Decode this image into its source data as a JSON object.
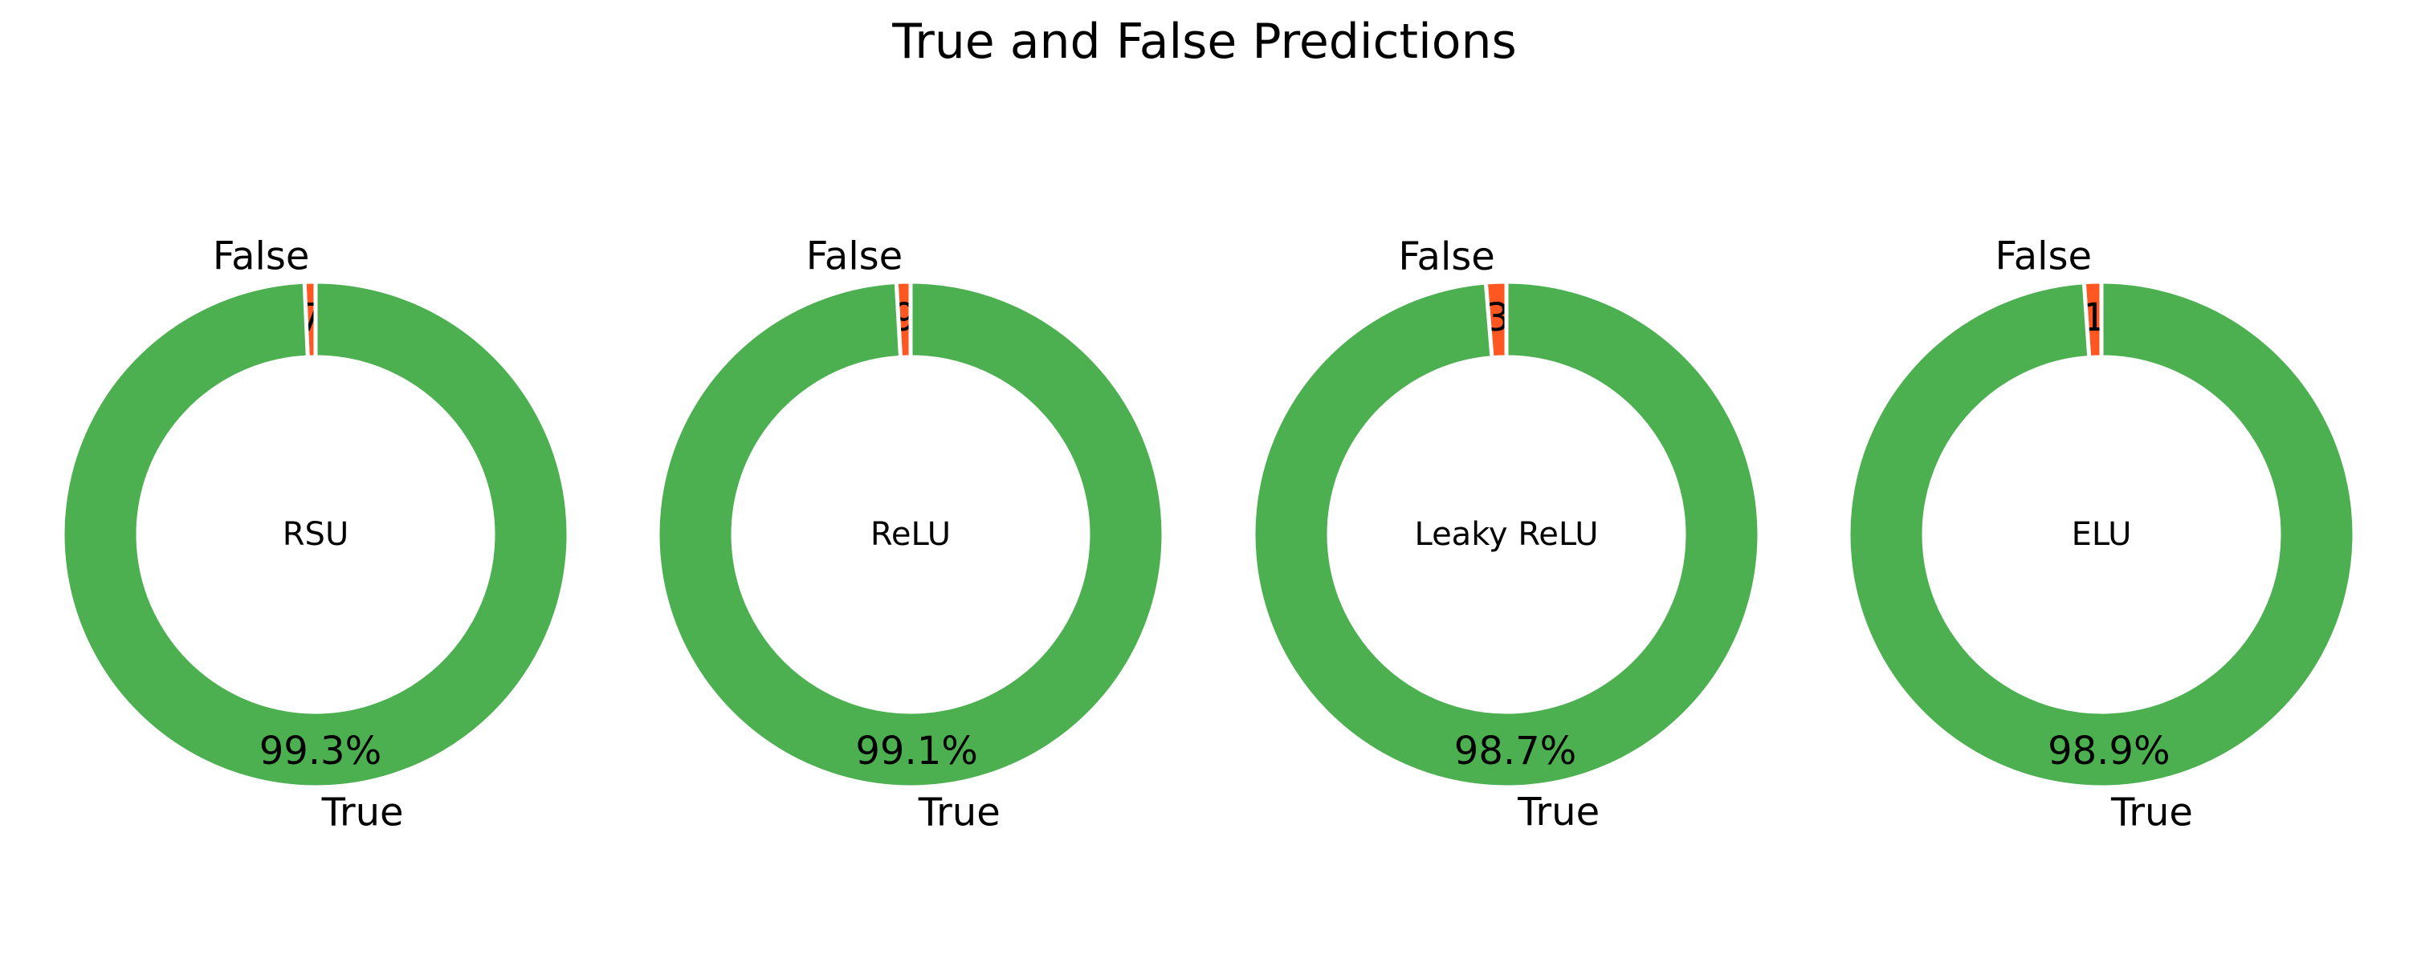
{
  "figure_title": "True and False Predictions",
  "colors": {
    "true": "#4caf50",
    "false": "#ff5722",
    "edge": "#ffffff",
    "background": "#ffffff"
  },
  "chart_data": [
    {
      "type": "pie",
      "donut": true,
      "center_label": "RSU",
      "categories": [
        "False",
        "True"
      ],
      "values": [
        0.7,
        99.3
      ],
      "value_labels": [
        "0.7%",
        "99.3%"
      ]
    },
    {
      "type": "pie",
      "donut": true,
      "center_label": "ReLU",
      "categories": [
        "False",
        "True"
      ],
      "values": [
        0.9,
        99.1
      ],
      "value_labels": [
        "0.9%",
        "99.1%"
      ]
    },
    {
      "type": "pie",
      "donut": true,
      "center_label": "Leaky ReLU",
      "categories": [
        "False",
        "True"
      ],
      "values": [
        1.3,
        98.7
      ],
      "value_labels": [
        "1.3%",
        "98.7%"
      ]
    },
    {
      "type": "pie",
      "donut": true,
      "center_label": "ELU",
      "categories": [
        "False",
        "True"
      ],
      "values": [
        1.1,
        98.9
      ],
      "value_labels": [
        "1.1%",
        "98.9%"
      ]
    }
  ]
}
